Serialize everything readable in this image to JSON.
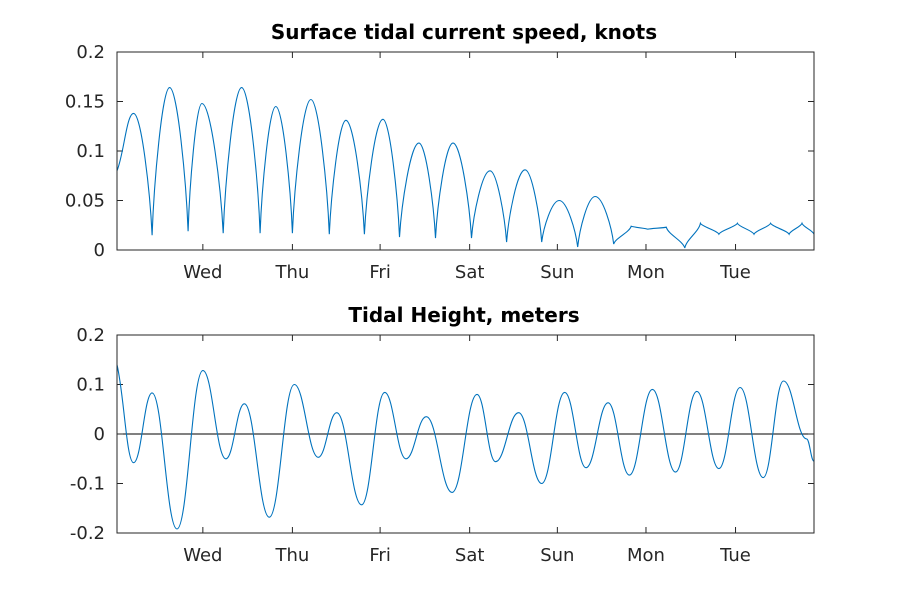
{
  "chart_data": [
    {
      "type": "line",
      "title": "Surface tidal current speed, knots",
      "xlabel": "",
      "ylabel": "",
      "xlim_days": [
        0,
        7.55
      ],
      "ylim": [
        0,
        0.2
      ],
      "yticks": [
        "0",
        "0.05",
        "0.1",
        "0.15",
        "0.2"
      ],
      "ytick_values": [
        0,
        0.05,
        0.1,
        0.15,
        0.2
      ],
      "xticks": [
        "Wed",
        "Thu",
        "Fri",
        "Sat",
        "Sun",
        "Mon",
        "Tue"
      ],
      "xtick_days": [
        0.93,
        1.9,
        2.85,
        3.82,
        4.77,
        5.73,
        6.7
      ],
      "grid": false,
      "color": "#0072bd",
      "series": [
        {
          "x": [
            0.0,
            0.18,
            0.38,
            0.57,
            0.77,
            0.92,
            1.15,
            1.35,
            1.55,
            1.72,
            1.9,
            2.1,
            2.3,
            2.48,
            2.68,
            2.88,
            3.06,
            3.27,
            3.45,
            3.64,
            3.84,
            4.04,
            4.22,
            4.42,
            4.6,
            4.79,
            4.99,
            5.18,
            5.38,
            5.57,
            5.75,
            5.95,
            6.15,
            6.32,
            6.52,
            6.72,
            6.9,
            7.08,
            7.28,
            7.42,
            7.55
          ],
          "values": [
            0.08,
            0.138,
            0.015,
            0.164,
            0.019,
            0.148,
            0.017,
            0.164,
            0.017,
            0.145,
            0.017,
            0.152,
            0.016,
            0.131,
            0.016,
            0.132,
            0.013,
            0.108,
            0.012,
            0.108,
            0.012,
            0.08,
            0.008,
            0.081,
            0.008,
            0.05,
            0.003,
            0.054,
            0.006,
            0.024,
            0.021,
            0.023,
            0.002,
            0.027,
            0.016,
            0.027,
            0.016,
            0.027,
            0.016,
            0.027,
            0.016
          ]
        }
      ]
    },
    {
      "type": "line",
      "title": "Tidal Height, meters",
      "xlabel": "",
      "ylabel": "",
      "xlim_days": [
        0,
        7.55
      ],
      "ylim": [
        -0.2,
        0.2
      ],
      "yticks": [
        "-0.2",
        "-0.1",
        "0",
        "0.1",
        "0.2"
      ],
      "ytick_values": [
        -0.2,
        -0.1,
        0,
        0.1,
        0.2
      ],
      "xticks": [
        "Wed",
        "Thu",
        "Fri",
        "Sat",
        "Sun",
        "Mon",
        "Tue"
      ],
      "xtick_days": [
        0.93,
        1.9,
        2.85,
        3.82,
        4.77,
        5.73,
        6.7
      ],
      "grid": false,
      "zero_line": true,
      "color": "#0072bd",
      "series": [
        {
          "x": [
            0.0,
            0.18,
            0.38,
            0.65,
            0.93,
            1.18,
            1.38,
            1.65,
            1.92,
            2.18,
            2.38,
            2.65,
            2.9,
            3.13,
            3.35,
            3.63,
            3.9,
            4.1,
            4.35,
            4.6,
            4.85,
            5.08,
            5.32,
            5.55,
            5.8,
            6.05,
            6.28,
            6.52,
            6.75,
            7.0,
            7.22,
            7.47,
            7.55
          ],
          "values": [
            0.14,
            -0.058,
            0.083,
            -0.192,
            0.128,
            -0.05,
            0.061,
            -0.168,
            0.1,
            -0.047,
            0.043,
            -0.143,
            0.084,
            -0.05,
            0.035,
            -0.118,
            0.08,
            -0.056,
            0.043,
            -0.1,
            0.084,
            -0.068,
            0.063,
            -0.083,
            0.09,
            -0.077,
            0.086,
            -0.07,
            0.094,
            -0.088,
            0.107,
            -0.01,
            -0.055
          ]
        }
      ]
    }
  ]
}
